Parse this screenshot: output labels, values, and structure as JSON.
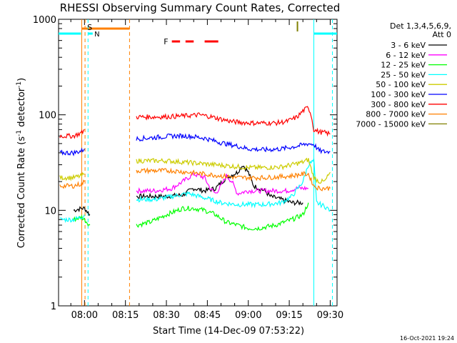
{
  "chart_data": {
    "type": "line",
    "title": "RHESSI Observing Summary Count Rates, Corrected",
    "xlabel": "Start Time (14-Dec-09 07:53:22)",
    "ylabel_main": "Corrected Count Rate (s",
    "ylabel_sup1": "-1",
    "ylabel_mid": " detector",
    "ylabel_sup2": "-1",
    "ylabel_end": ")",
    "y_scale": "log",
    "ylim": [
      1,
      1000
    ],
    "y_ticks": [
      {
        "value": 1,
        "label": "1"
      },
      {
        "value": 10,
        "label": "10"
      },
      {
        "value": 100,
        "label": "100"
      },
      {
        "value": 1000,
        "label": "1000"
      }
    ],
    "xlim_minutes": [
      -9.5,
      92.5
    ],
    "x_ticks": [
      {
        "minute": 0,
        "label": "08:00"
      },
      {
        "minute": 15,
        "label": "08:15"
      },
      {
        "minute": 30,
        "label": "08:30"
      },
      {
        "minute": 45,
        "label": "08:45"
      },
      {
        "minute": 60,
        "label": "09:00"
      },
      {
        "minute": 75,
        "label": "09:15"
      },
      {
        "minute": 90,
        "label": "09:30"
      }
    ],
    "legend_header": [
      "Det 1,3,4,5,6,9,",
      "Att 0"
    ],
    "timestamp": "16-Oct-2021 19:24",
    "markers": {
      "saa_label": "S",
      "night_label": "N",
      "flare_label": "F"
    },
    "series": [
      {
        "name": "3 - 6 keV",
        "color": "#000000",
        "points": [
          [
            -4,
            10
          ],
          [
            -1,
            10.5
          ],
          [
            0,
            10.5
          ],
          [
            2,
            9
          ],
          [
            19,
            14
          ],
          [
            26,
            14
          ],
          [
            30,
            14
          ],
          [
            36,
            14.5
          ],
          [
            40,
            17
          ],
          [
            44,
            16
          ],
          [
            48,
            17
          ],
          [
            52,
            22
          ],
          [
            56,
            25
          ],
          [
            58,
            30
          ],
          [
            60,
            25
          ],
          [
            62,
            18
          ],
          [
            66,
            16
          ],
          [
            68,
            14
          ],
          [
            72,
            13
          ],
          [
            76,
            12
          ],
          [
            78,
            12
          ],
          [
            80,
            12
          ]
        ]
      },
      {
        "name": "6 - 12 keV",
        "color": "#ff00ff",
        "points": [
          [
            19,
            16
          ],
          [
            26,
            16
          ],
          [
            32,
            17
          ],
          [
            36,
            20
          ],
          [
            40,
            24
          ],
          [
            44,
            22
          ],
          [
            46,
            17
          ],
          [
            48,
            15
          ],
          [
            50,
            18
          ],
          [
            52,
            23
          ],
          [
            54,
            20
          ],
          [
            56,
            15
          ],
          [
            60,
            16
          ],
          [
            64,
            16
          ],
          [
            70,
            16
          ],
          [
            74,
            16
          ],
          [
            78,
            17
          ],
          [
            82,
            17
          ]
        ]
      },
      {
        "name": "12 - 25 keV",
        "color": "#00ff00",
        "points": [
          [
            -4,
            8
          ],
          [
            -1,
            8.5
          ],
          [
            0,
            8
          ],
          [
            2,
            7
          ],
          [
            19,
            7
          ],
          [
            24,
            7.5
          ],
          [
            30,
            9
          ],
          [
            36,
            10.5
          ],
          [
            40,
            10.5
          ],
          [
            44,
            10
          ],
          [
            48,
            9
          ],
          [
            52,
            7.5
          ],
          [
            56,
            7
          ],
          [
            60,
            6.5
          ],
          [
            64,
            6.5
          ],
          [
            70,
            7
          ],
          [
            76,
            8
          ],
          [
            80,
            9
          ],
          [
            82,
            12
          ]
        ]
      },
      {
        "name": "25 - 50 keV",
        "color": "#00ffff",
        "points": [
          [
            -9,
            8
          ],
          [
            -4,
            8
          ],
          [
            -1,
            8.5
          ],
          [
            0,
            9
          ],
          [
            19,
            13
          ],
          [
            26,
            13
          ],
          [
            32,
            14
          ],
          [
            38,
            15
          ],
          [
            42,
            14
          ],
          [
            46,
            13
          ],
          [
            50,
            12
          ],
          [
            56,
            11.5
          ],
          [
            60,
            11.5
          ],
          [
            66,
            11.5
          ],
          [
            72,
            12
          ],
          [
            76,
            14
          ],
          [
            80,
            20
          ],
          [
            82,
            30
          ],
          [
            84,
            33
          ],
          [
            85,
            12
          ],
          [
            88,
            11
          ],
          [
            90,
            10
          ]
        ]
      },
      {
        "name": "50 - 100 keV",
        "color": "#cccc00",
        "points": [
          [
            -9,
            22
          ],
          [
            -4,
            22
          ],
          [
            -1,
            23
          ],
          [
            0,
            24
          ],
          [
            19,
            33
          ],
          [
            26,
            33
          ],
          [
            30,
            33
          ],
          [
            36,
            32
          ],
          [
            42,
            31
          ],
          [
            48,
            30
          ],
          [
            54,
            29
          ],
          [
            60,
            28
          ],
          [
            66,
            28
          ],
          [
            72,
            28.5
          ],
          [
            76,
            30
          ],
          [
            80,
            32
          ],
          [
            82,
            34
          ],
          [
            84,
            22
          ],
          [
            86,
            20
          ],
          [
            88,
            20
          ],
          [
            90,
            25
          ]
        ]
      },
      {
        "name": "100 - 300 keV",
        "color": "#0000ff",
        "points": [
          [
            -9,
            40
          ],
          [
            -4,
            40
          ],
          [
            -1,
            42
          ],
          [
            0,
            44
          ],
          [
            19,
            56
          ],
          [
            26,
            58
          ],
          [
            32,
            60
          ],
          [
            38,
            60
          ],
          [
            44,
            57
          ],
          [
            50,
            51
          ],
          [
            56,
            47
          ],
          [
            60,
            44
          ],
          [
            66,
            43
          ],
          [
            72,
            44
          ],
          [
            78,
            47
          ],
          [
            82,
            50
          ],
          [
            84,
            49
          ],
          [
            86,
            42
          ],
          [
            88,
            41
          ],
          [
            90,
            41
          ]
        ]
      },
      {
        "name": "300 - 800 keV",
        "color": "#ff0000",
        "points": [
          [
            -9,
            60
          ],
          [
            -4,
            60
          ],
          [
            -1,
            65
          ],
          [
            0,
            70
          ],
          [
            19,
            95
          ],
          [
            26,
            95
          ],
          [
            32,
            96
          ],
          [
            38,
            98
          ],
          [
            42,
            100
          ],
          [
            46,
            96
          ],
          [
            50,
            90
          ],
          [
            54,
            85
          ],
          [
            58,
            83
          ],
          [
            62,
            82
          ],
          [
            66,
            82
          ],
          [
            70,
            82
          ],
          [
            74,
            85
          ],
          [
            78,
            95
          ],
          [
            80,
            110
          ],
          [
            82,
            120
          ],
          [
            83,
            100
          ],
          [
            84,
            70
          ],
          [
            86,
            66
          ],
          [
            88,
            65
          ],
          [
            90,
            63
          ]
        ]
      },
      {
        "name": "800 - 7000 keV",
        "color": "#ff8000",
        "points": [
          [
            -9,
            18
          ],
          [
            -4,
            18
          ],
          [
            -1,
            19
          ],
          [
            0,
            20
          ],
          [
            19,
            26
          ],
          [
            26,
            26
          ],
          [
            32,
            26
          ],
          [
            38,
            25
          ],
          [
            44,
            24
          ],
          [
            50,
            23
          ],
          [
            56,
            22
          ],
          [
            60,
            22
          ],
          [
            66,
            22
          ],
          [
            72,
            22.5
          ],
          [
            76,
            23
          ],
          [
            80,
            24
          ],
          [
            82,
            24
          ],
          [
            84,
            18
          ],
          [
            86,
            17
          ],
          [
            88,
            17
          ],
          [
            90,
            17
          ]
        ]
      },
      {
        "name": "7000 - 15000 keV",
        "color": "#808000",
        "points": []
      }
    ]
  }
}
